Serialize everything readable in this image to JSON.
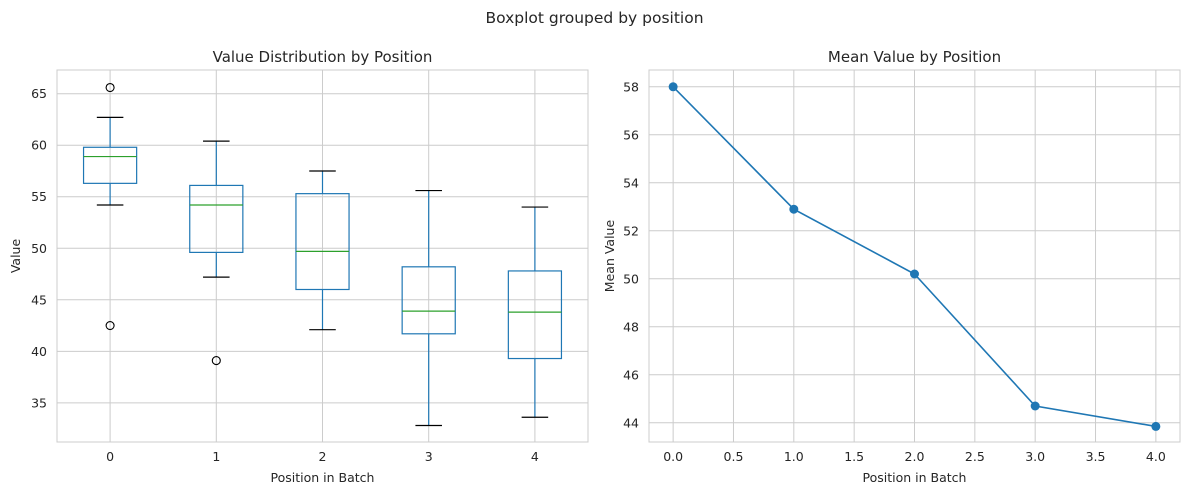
{
  "figure": {
    "suptitle": "Boxplot grouped by position"
  },
  "chart_data": [
    {
      "type": "box",
      "title": "Value Distribution by Position",
      "xlabel": "Position in Batch",
      "ylabel": "Value",
      "categories": [
        "0",
        "1",
        "2",
        "3",
        "4"
      ],
      "ylim": [
        31.2,
        67.3
      ],
      "yticks": [
        35,
        40,
        45,
        50,
        55,
        60,
        65
      ],
      "ytick_labels": [
        "35",
        "40",
        "45",
        "50",
        "55",
        "60",
        "65"
      ],
      "grid": true,
      "boxes": [
        {
          "category": "0",
          "whisker_low": 54.2,
          "q1": 56.3,
          "median": 58.9,
          "q3": 59.8,
          "whisker_high": 62.7,
          "outliers": [
            65.6,
            42.5
          ]
        },
        {
          "category": "1",
          "whisker_low": 47.2,
          "q1": 49.6,
          "median": 54.2,
          "q3": 56.1,
          "whisker_high": 60.4,
          "outliers": [
            39.1
          ]
        },
        {
          "category": "2",
          "whisker_low": 42.1,
          "q1": 46.0,
          "median": 49.7,
          "q3": 55.3,
          "whisker_high": 57.5,
          "outliers": []
        },
        {
          "category": "3",
          "whisker_low": 32.8,
          "q1": 41.7,
          "median": 43.9,
          "q3": 48.2,
          "whisker_high": 55.6,
          "outliers": []
        },
        {
          "category": "4",
          "whisker_low": 33.6,
          "q1": 39.3,
          "median": 43.8,
          "q3": 47.8,
          "whisker_high": 54.0,
          "outliers": []
        }
      ],
      "colors": {
        "box": "#1f77b4",
        "median": "#2ca02c",
        "whisker_cap": "#000000",
        "outlier": "#000000"
      }
    },
    {
      "type": "line",
      "title": "Mean Value by Position",
      "xlabel": "Position in Batch",
      "ylabel": "Mean Value",
      "x": [
        0,
        1,
        2,
        3,
        4
      ],
      "y": [
        58.0,
        52.9,
        50.2,
        44.7,
        43.85
      ],
      "xlim": [
        -0.2,
        4.2
      ],
      "ylim": [
        43.2,
        58.7
      ],
      "xticks": [
        0.0,
        0.5,
        1.0,
        1.5,
        2.0,
        2.5,
        3.0,
        3.5,
        4.0
      ],
      "xtick_labels": [
        "0.0",
        "0.5",
        "1.0",
        "1.5",
        "2.0",
        "2.5",
        "3.0",
        "3.5",
        "4.0"
      ],
      "yticks": [
        44,
        46,
        48,
        50,
        52,
        54,
        56,
        58
      ],
      "ytick_labels": [
        "44",
        "46",
        "48",
        "50",
        "52",
        "54",
        "56",
        "58"
      ],
      "marker": "circle",
      "grid": true,
      "colors": {
        "line": "#1f77b4"
      }
    }
  ]
}
